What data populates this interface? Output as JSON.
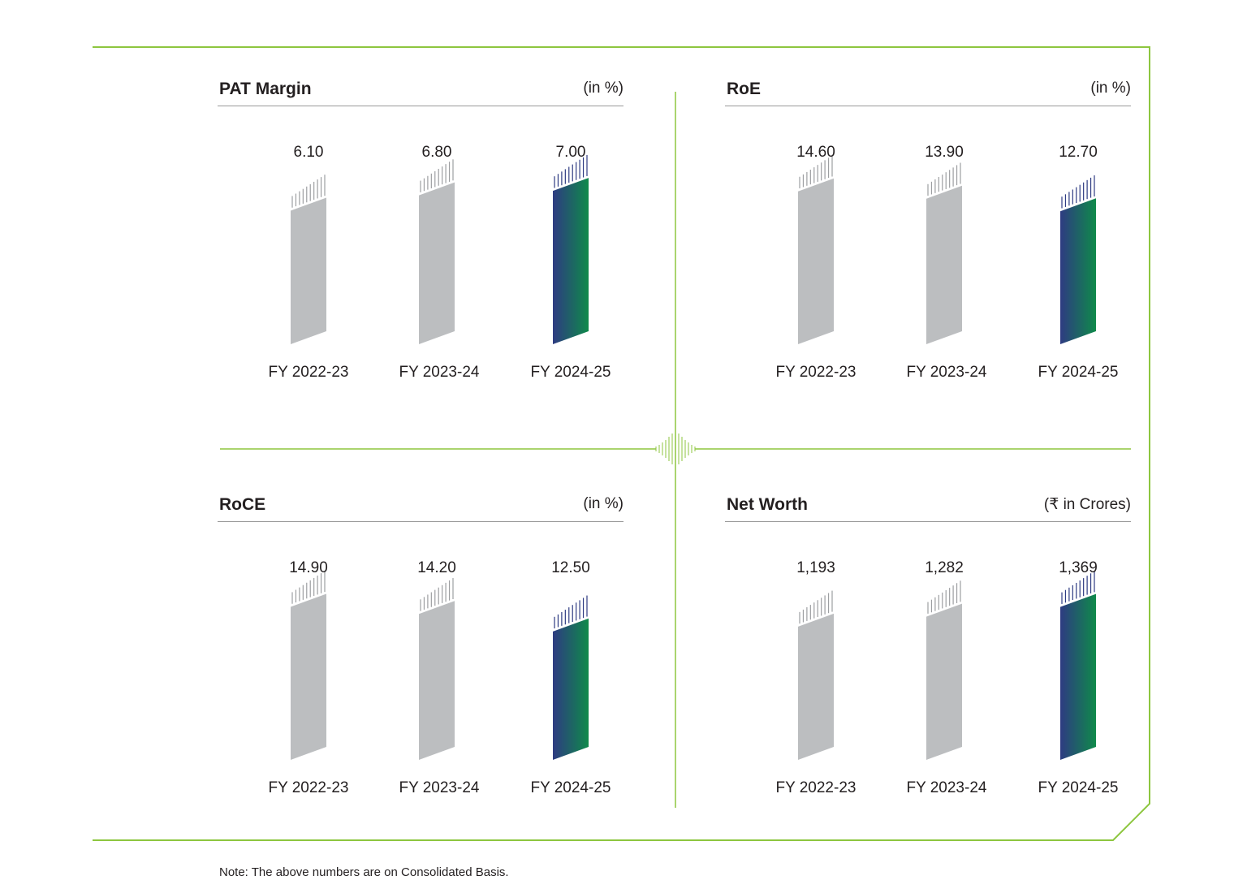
{
  "colors": {
    "frame": "#8dc63f",
    "bar_previous": "#bcbec0",
    "bar_current_start": "#2e3b82",
    "bar_current_end": "#0f8a4a",
    "rule": "#9a9a9a"
  },
  "chart_data": [
    {
      "type": "bar",
      "title": "PAT Margin",
      "unit": "(in %)",
      "categories": [
        "FY 2022-23",
        "FY 2023-24",
        "FY 2024-25"
      ],
      "values": [
        6.1,
        6.8,
        7.0
      ],
      "labels": [
        "6.10",
        "6.80",
        "7.00"
      ],
      "highlight_index": 2,
      "ylim": [
        0,
        7.6
      ]
    },
    {
      "type": "bar",
      "title": "RoE",
      "unit": "(in %)",
      "categories": [
        "FY 2022-23",
        "FY 2023-24",
        "FY 2024-25"
      ],
      "values": [
        14.6,
        13.9,
        12.7
      ],
      "labels": [
        "14.60",
        "13.90",
        "12.70"
      ],
      "highlight_index": 2,
      "ylim": [
        0,
        15.9
      ]
    },
    {
      "type": "bar",
      "title": "RoCE",
      "unit": "(in %)",
      "categories": [
        "FY 2022-23",
        "FY 2023-24",
        "FY 2024-25"
      ],
      "values": [
        14.9,
        14.2,
        12.5
      ],
      "labels": [
        "14.90",
        "14.20",
        "12.50"
      ],
      "highlight_index": 2,
      "ylim": [
        0,
        16.2
      ]
    },
    {
      "type": "bar",
      "title": "Net Worth",
      "unit": "(₹ in Crores)",
      "categories": [
        "FY 2022-23",
        "FY 2023-24",
        "FY 2024-25"
      ],
      "values": [
        1193,
        1282,
        1369
      ],
      "labels": [
        "1,193",
        "1,282",
        "1,369"
      ],
      "highlight_index": 2,
      "ylim": [
        0,
        1490
      ]
    }
  ],
  "note": "Note: The above numbers are on Consolidated Basis."
}
